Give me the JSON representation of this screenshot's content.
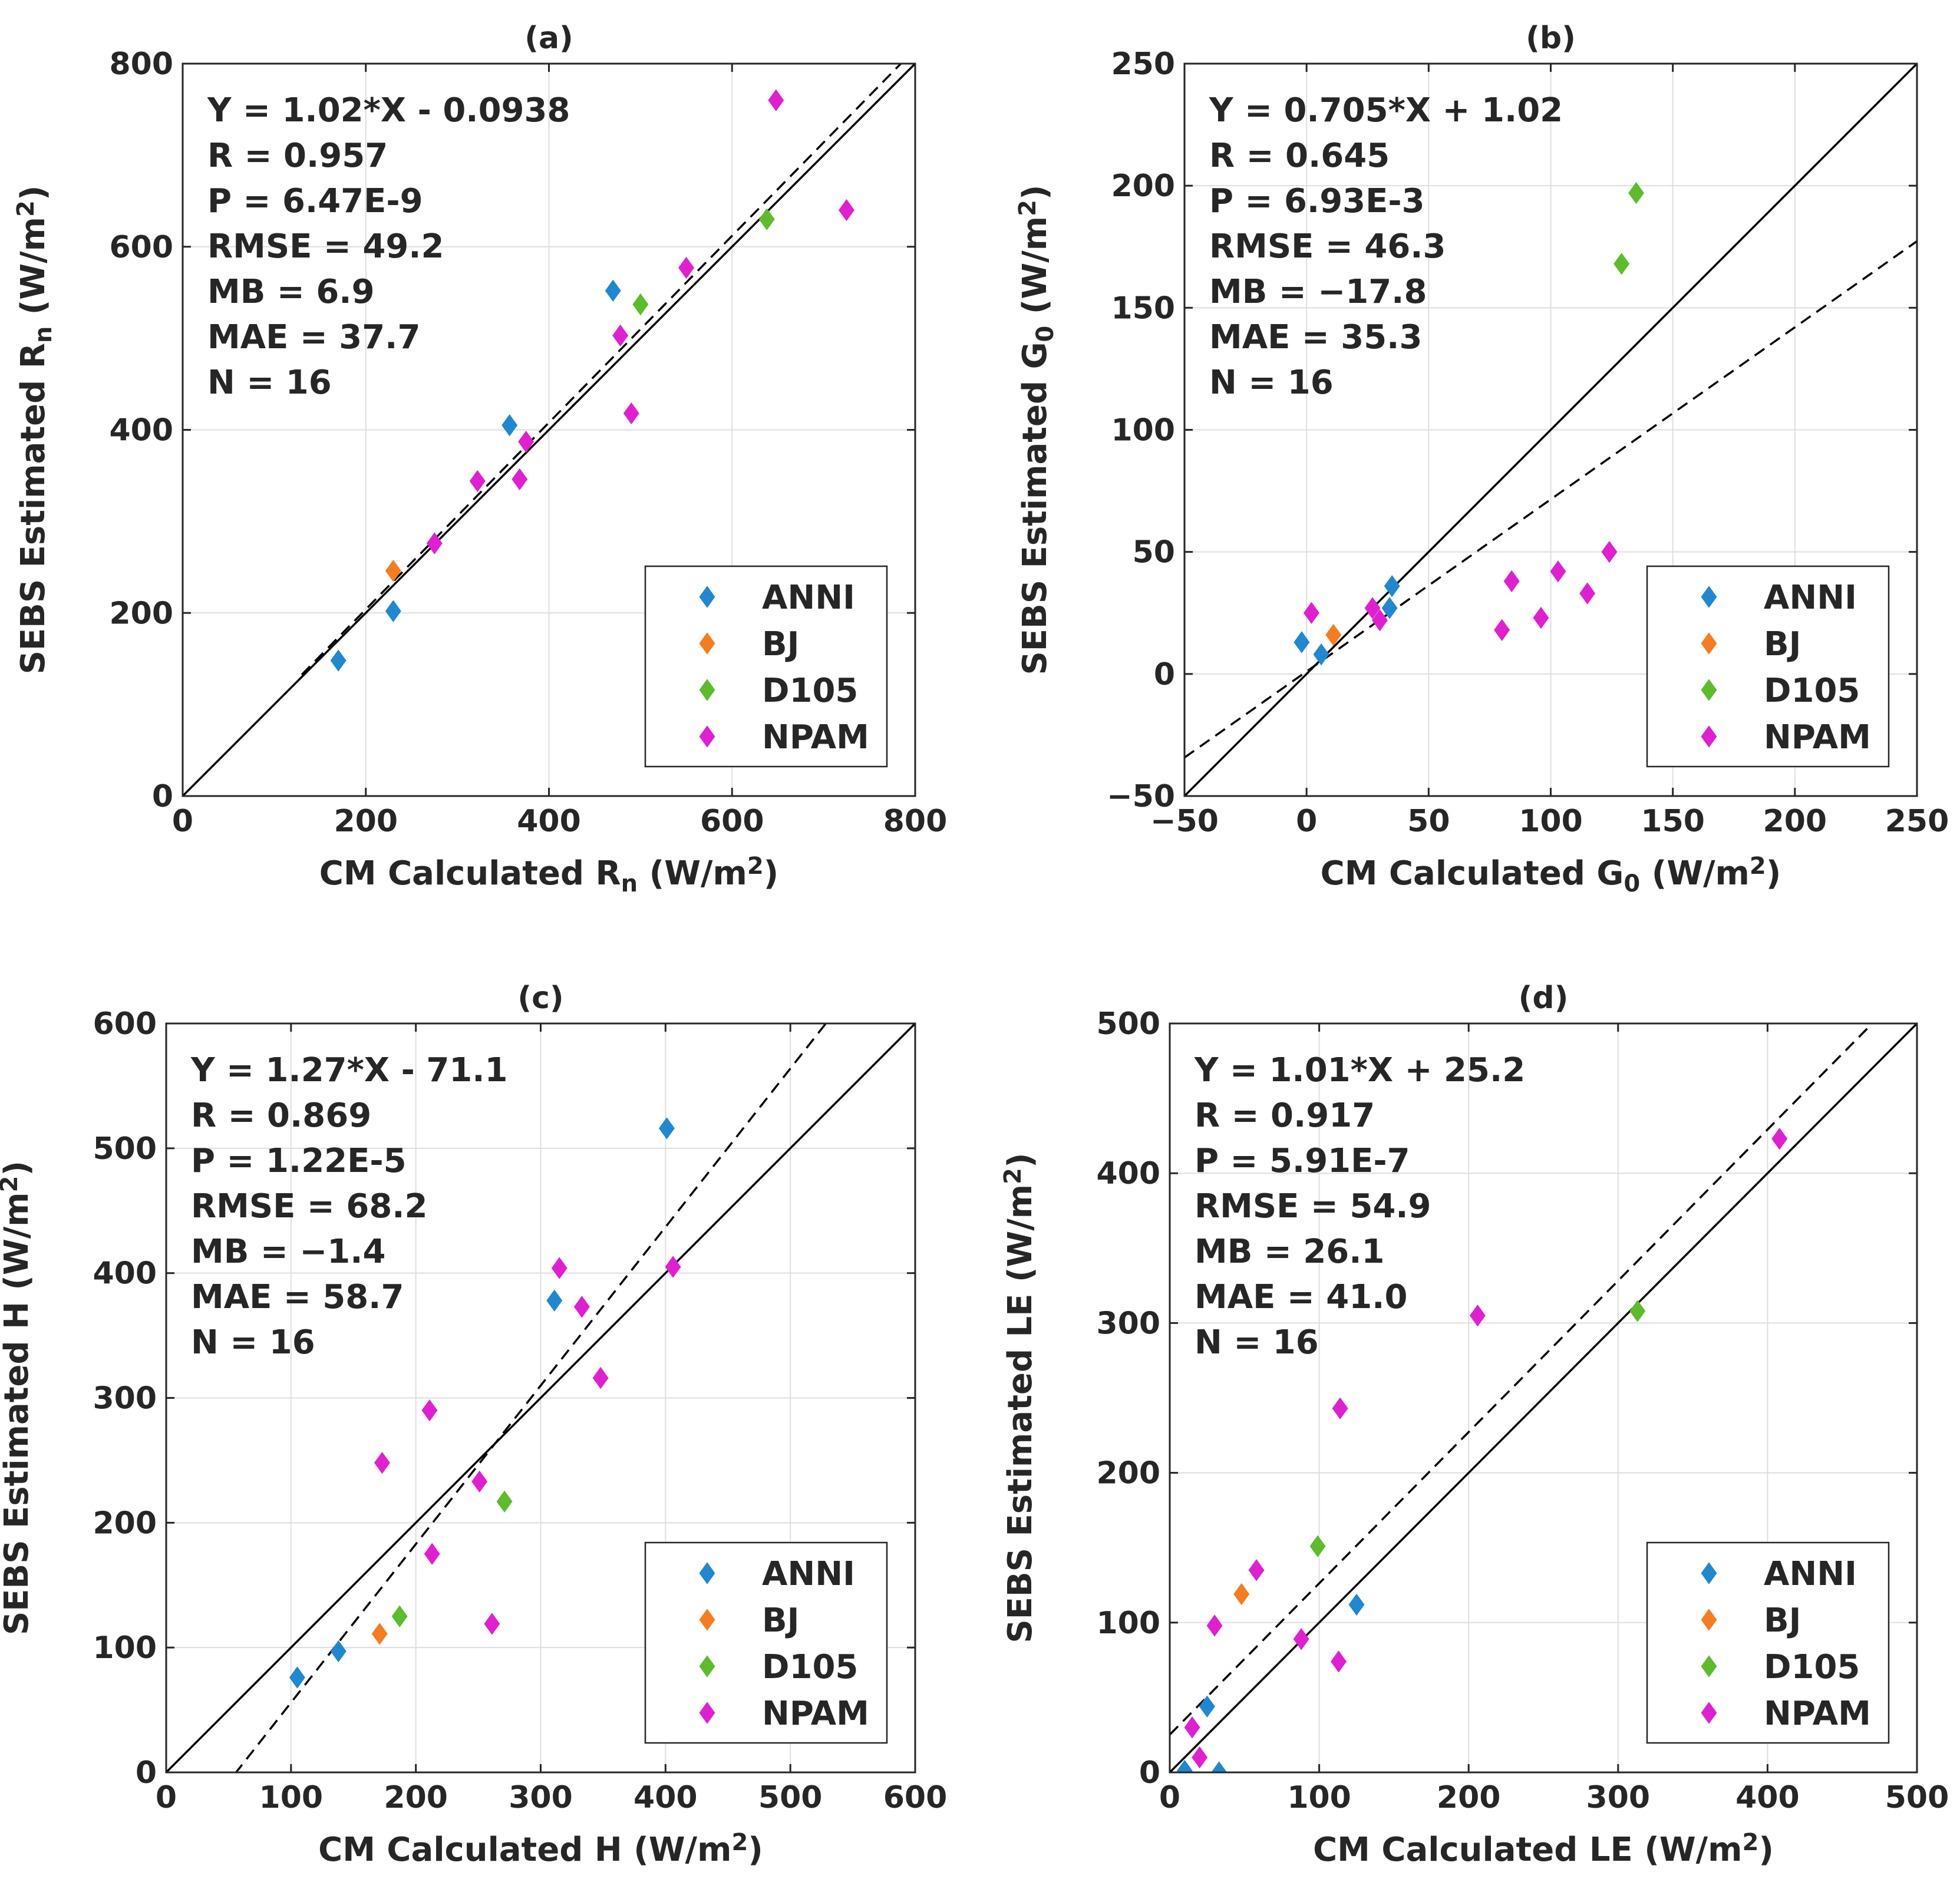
{
  "chart_data": [
    {
      "type": "scatter",
      "panel_label": "(a)",
      "xlabel": {
        "base": "CM Calculated R",
        "sub": "n",
        "unit_pre": " (W/m",
        "sup": "2",
        "unit_post": ")"
      },
      "ylabel": {
        "base": "SEBS Estimated R",
        "sub": "n",
        "unit_pre": " (W/m",
        "sup": "2",
        "unit_post": ")"
      },
      "xlim": [
        0,
        800
      ],
      "ylim": [
        0,
        800
      ],
      "xticks": [
        0,
        200,
        400,
        600,
        800
      ],
      "yticks": [
        0,
        200,
        400,
        600,
        800
      ],
      "stats": [
        "Y = 1.02*X - 0.0938",
        "R = 0.957",
        "P = 6.47E-9",
        "RMSE = 49.2",
        "MB = 6.9",
        "MAE = 37.7",
        "N = 16"
      ],
      "fit": {
        "slope": 1.02,
        "intercept": -0.0938,
        "x_range": [
          130,
          800
        ]
      },
      "series": [
        {
          "name": "ANNI",
          "points": [
            [
              170,
              148
            ],
            [
              230,
              202
            ],
            [
              357,
              405
            ],
            [
              470,
              552
            ]
          ]
        },
        {
          "name": "BJ",
          "points": [
            [
              230,
              246
            ]
          ]
        },
        {
          "name": "D105",
          "points": [
            [
              500,
              537
            ],
            [
              638,
              630
            ]
          ]
        },
        {
          "name": "NPAM",
          "points": [
            [
              275,
              276
            ],
            [
              322,
              344
            ],
            [
              368,
              346
            ],
            [
              375,
              387
            ],
            [
              478,
              503
            ],
            [
              490,
              418
            ],
            [
              550,
              577
            ],
            [
              648,
              760
            ],
            [
              725,
              640
            ]
          ]
        }
      ]
    },
    {
      "type": "scatter",
      "panel_label": "(b)",
      "xlabel": {
        "base": "CM Calculated G",
        "sub": "0",
        "unit_pre": " (W/m",
        "sup": "2",
        "unit_post": ")"
      },
      "ylabel": {
        "base": "SEBS Estimated G",
        "sub": "0",
        "unit_pre": " (W/m",
        "sup": "2",
        "unit_post": ")"
      },
      "xlim": [
        -50,
        250
      ],
      "ylim": [
        -50,
        250
      ],
      "xticks": [
        -50,
        0,
        50,
        100,
        150,
        200,
        250
      ],
      "yticks": [
        -50,
        0,
        50,
        100,
        150,
        200,
        250
      ],
      "stats": [
        "Y = 0.705*X + 1.02",
        "R = 0.645",
        "P = 6.93E-3",
        "RMSE = 46.3",
        "MB = -17.8",
        "MAE = 35.3",
        "N = 16"
      ],
      "fit": {
        "slope": 0.705,
        "intercept": 1.02,
        "x_range": [
          -50,
          250
        ]
      },
      "series": [
        {
          "name": "ANNI",
          "points": [
            [
              -2,
              13
            ],
            [
              6,
              8
            ],
            [
              34,
              27
            ],
            [
              35,
              36
            ]
          ]
        },
        {
          "name": "BJ",
          "points": [
            [
              11,
              16
            ]
          ]
        },
        {
          "name": "D105",
          "points": [
            [
              129,
              168
            ],
            [
              135,
              197
            ]
          ]
        },
        {
          "name": "NPAM",
          "points": [
            [
              2,
              25
            ],
            [
              27,
              27
            ],
            [
              30,
              22
            ],
            [
              80,
              18
            ],
            [
              84,
              38
            ],
            [
              96,
              23
            ],
            [
              103,
              42
            ],
            [
              115,
              33
            ],
            [
              124,
              50
            ]
          ]
        }
      ]
    },
    {
      "type": "scatter",
      "panel_label": "(c)",
      "xlabel": {
        "base": "CM Calculated H",
        "sub": "",
        "unit_pre": " (W/m",
        "sup": "2",
        "unit_post": ")"
      },
      "ylabel": {
        "base": "SEBS Estimated H",
        "sub": "",
        "unit_pre": " (W/m",
        "sup": "2",
        "unit_post": ")"
      },
      "xlim": [
        0,
        600
      ],
      "ylim": [
        0,
        600
      ],
      "xticks": [
        0,
        100,
        200,
        300,
        400,
        500,
        600
      ],
      "yticks": [
        0,
        100,
        200,
        300,
        400,
        500,
        600
      ],
      "stats": [
        "Y = 1.27*X - 71.1",
        "R = 0.869",
        "P = 1.22E-5",
        "RMSE = 68.2",
        "MB = -1.4",
        "MAE = 58.7",
        "N = 16"
      ],
      "fit": {
        "slope": 1.27,
        "intercept": -71.1,
        "x_range": [
          55,
          530
        ]
      },
      "series": [
        {
          "name": "ANNI",
          "points": [
            [
              105,
              76
            ],
            [
              138,
              97
            ],
            [
              311,
              378
            ],
            [
              401,
              516
            ]
          ]
        },
        {
          "name": "BJ",
          "points": [
            [
              171,
              111
            ]
          ]
        },
        {
          "name": "D105",
          "points": [
            [
              187,
              125
            ],
            [
              271,
              217
            ]
          ]
        },
        {
          "name": "NPAM",
          "points": [
            [
              173,
              248
            ],
            [
              211,
              290
            ],
            [
              213,
              175
            ],
            [
              251,
              233
            ],
            [
              261,
              119
            ],
            [
              315,
              404
            ],
            [
              333,
              373
            ],
            [
              348,
              316
            ],
            [
              406,
              405
            ]
          ]
        }
      ]
    },
    {
      "type": "scatter",
      "panel_label": "(d)",
      "xlabel": {
        "base": "CM Calculated LE",
        "sub": "",
        "unit_pre": " (W/m",
        "sup": "2",
        "unit_post": ")"
      },
      "ylabel": {
        "base": "SEBS Estimated LE",
        "sub": "",
        "unit_pre": " (W/m",
        "sup": "2",
        "unit_post": ")"
      },
      "xlim": [
        0,
        500
      ],
      "ylim": [
        0,
        500
      ],
      "xticks": [
        0,
        100,
        200,
        300,
        400,
        500
      ],
      "yticks": [
        0,
        100,
        200,
        300,
        400,
        500
      ],
      "stats": [
        "Y = 1.01*X + 25.2",
        "R = 0.917",
        "P = 5.91E-7",
        "RMSE = 54.9",
        "MB = 26.1",
        "MAE = 41.0",
        "N = 16"
      ],
      "fit": {
        "slope": 1.01,
        "intercept": 25.2,
        "x_range": [
          0,
          470
        ]
      },
      "series": [
        {
          "name": "ANNI",
          "points": [
            [
              10,
              1
            ],
            [
              25,
              44
            ],
            [
              33,
              0
            ],
            [
              125,
              112
            ]
          ]
        },
        {
          "name": "BJ",
          "points": [
            [
              48,
              119
            ]
          ]
        },
        {
          "name": "D105",
          "points": [
            [
              99,
              151
            ],
            [
              313,
              308
            ]
          ]
        },
        {
          "name": "NPAM",
          "points": [
            [
              15,
              30
            ],
            [
              20,
              10
            ],
            [
              30,
              98
            ],
            [
              58,
              135
            ],
            [
              88,
              89
            ],
            [
              113,
              74
            ],
            [
              114,
              243
            ],
            [
              206,
              305
            ],
            [
              408,
              423
            ]
          ]
        }
      ]
    }
  ],
  "legend": {
    "placement": "bottom-right",
    "entries": [
      "ANNI",
      "BJ",
      "D105",
      "NPAM"
    ]
  },
  "series_colors": {
    "ANNI": "#1f88d0",
    "BJ": "#f57d1f",
    "D105": "#5ebc2c",
    "NPAM": "#e020d0"
  },
  "grid": true,
  "reference_line": "1:1 solid",
  "fit_line": "dashed"
}
